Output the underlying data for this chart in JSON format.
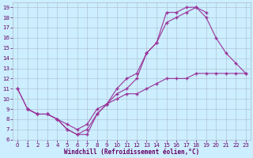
{
  "xlabel": "Windchill (Refroidissement éolien,°C)",
  "bg_color": "#cceeff",
  "line_color": "#993399",
  "xlim": [
    -0.5,
    23.5
  ],
  "ylim": [
    6,
    19.5
  ],
  "yticks": [
    6,
    7,
    8,
    9,
    10,
    11,
    12,
    13,
    14,
    15,
    16,
    17,
    18,
    19
  ],
  "xticks": [
    0,
    1,
    2,
    3,
    4,
    5,
    6,
    7,
    8,
    9,
    10,
    11,
    12,
    13,
    14,
    15,
    16,
    17,
    18,
    19,
    20,
    21,
    22,
    23
  ],
  "line1_x": [
    1,
    2,
    3,
    4,
    5,
    6,
    7,
    8,
    9,
    10,
    11,
    12,
    13,
    14,
    15,
    16,
    17,
    18,
    19,
    20,
    21,
    22,
    23
  ],
  "line1_y": [
    9,
    8.5,
    8.5,
    8,
    7,
    6.5,
    6.5,
    8.5,
    9.5,
    10,
    10.5,
    10.5,
    11,
    11.5,
    12,
    12,
    12,
    12.5,
    12.5,
    12.5,
    12.5,
    12.5,
    12.5
  ],
  "line2_x": [
    0,
    1,
    2,
    3,
    4,
    5,
    6,
    7,
    8,
    9,
    10,
    11,
    12,
    13,
    14,
    15,
    16,
    17,
    18,
    19
  ],
  "line2_y": [
    11,
    9,
    8.5,
    8.5,
    8,
    7,
    6.5,
    7,
    8.5,
    9.5,
    11,
    12,
    12.5,
    14.5,
    15.5,
    18.5,
    18.5,
    19,
    19,
    18.5
  ],
  "line3_x": [
    0,
    1,
    2,
    3,
    4,
    5,
    6,
    7,
    8,
    9,
    10,
    11,
    12,
    13,
    14,
    15,
    16,
    17,
    18,
    19,
    20,
    21,
    22,
    23
  ],
  "line3_y": [
    11,
    9,
    8.5,
    8.5,
    8,
    7.5,
    7,
    7.5,
    9,
    9.5,
    10.5,
    11,
    12,
    14.5,
    15.5,
    17.5,
    18,
    18.5,
    19,
    18,
    16,
    14.5,
    13.5,
    12.5
  ]
}
